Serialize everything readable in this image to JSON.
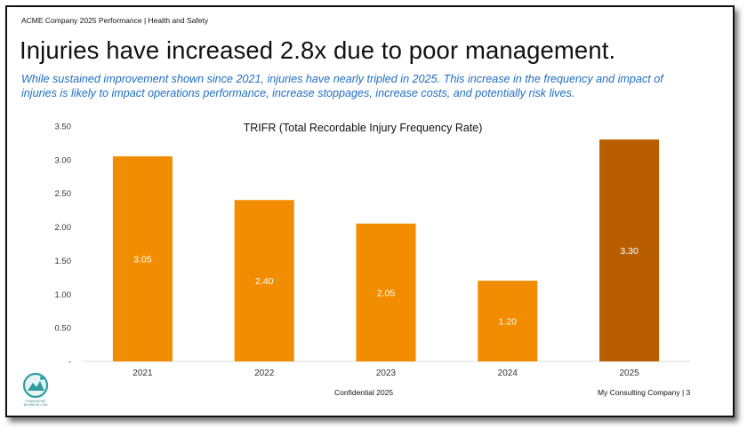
{
  "header": {
    "breadcrumb": "ACME Company 2025 Performance | Health and Safety",
    "title": "Injuries have increased 2.8x due to poor management.",
    "subtitle": "While sustained improvement shown since 2021, injuries have nearly tripled in 2025. This increase in the frequency and impact of injuries is likely to impact operations performance, increase stoppages, increase costs, and potentially risk lives."
  },
  "footer": {
    "center": "Confidential 2025",
    "right": "My Consulting Company | 3",
    "logo_text": "FRAMEWORK\nBUSINESS.COM"
  },
  "colors": {
    "bar": "#f28c00",
    "highlight": "#b85e00",
    "subtitle": "#1f6ec2"
  },
  "chart_data": {
    "type": "bar",
    "title": "TRIFR (Total Recordable Injury Frequency Rate)",
    "categories": [
      "2021",
      "2022",
      "2023",
      "2024",
      "2025"
    ],
    "values": [
      3.05,
      2.4,
      2.05,
      1.2,
      3.3
    ],
    "value_labels": [
      "3.05",
      "2.40",
      "2.05",
      "1.20",
      "3.30"
    ],
    "highlight_index": 4,
    "ylim": [
      0,
      3.5
    ],
    "yticks": [
      0,
      0.5,
      1.0,
      1.5,
      2.0,
      2.5,
      3.0,
      3.5
    ],
    "ytick_labels": [
      "-",
      "0.50",
      "1.00",
      "1.50",
      "2.00",
      "2.50",
      "3.00",
      "3.50"
    ],
    "xlabel": "",
    "ylabel": "",
    "grid": false
  }
}
